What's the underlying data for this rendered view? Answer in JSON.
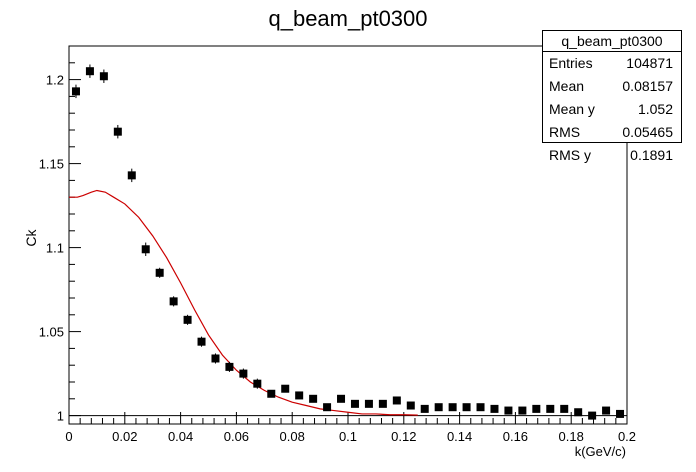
{
  "chart_data": {
    "type": "scatter",
    "title": "q_beam_pt0300",
    "xlabel": "k(GeV/c)",
    "ylabel": "Ck",
    "xlim": [
      0,
      0.2
    ],
    "ylim": [
      0.995,
      1.22
    ],
    "x_ticks": [
      "0",
      "0.02",
      "0.04",
      "0.06",
      "0.08",
      "0.1",
      "0.12",
      "0.14",
      "0.16",
      "0.18",
      "0.2"
    ],
    "y_ticks": [
      "1",
      "1.05",
      "1.1",
      "1.15",
      "1.2"
    ],
    "grid": false,
    "legend": "none",
    "series": [
      {
        "marker": "square",
        "color": "#000000",
        "points": [
          {
            "x": 0.0025,
            "y": 1.193,
            "err": 0.004
          },
          {
            "x": 0.0075,
            "y": 1.205,
            "err": 0.004
          },
          {
            "x": 0.0125,
            "y": 1.202,
            "err": 0.004
          },
          {
            "x": 0.0175,
            "y": 1.169,
            "err": 0.004
          },
          {
            "x": 0.0225,
            "y": 1.143,
            "err": 0.004
          },
          {
            "x": 0.0275,
            "y": 1.099,
            "err": 0.004
          },
          {
            "x": 0.0325,
            "y": 1.085,
            "err": 0.003
          },
          {
            "x": 0.0375,
            "y": 1.068,
            "err": 0.003
          },
          {
            "x": 0.0425,
            "y": 1.057,
            "err": 0.003
          },
          {
            "x": 0.0475,
            "y": 1.044,
            "err": 0.003
          },
          {
            "x": 0.0525,
            "y": 1.034,
            "err": 0.003
          },
          {
            "x": 0.0575,
            "y": 1.029,
            "err": 0.003
          },
          {
            "x": 0.0625,
            "y": 1.025,
            "err": 0.003
          },
          {
            "x": 0.0675,
            "y": 1.019,
            "err": 0.003
          },
          {
            "x": 0.0725,
            "y": 1.013,
            "err": 0.002
          },
          {
            "x": 0.0775,
            "y": 1.016,
            "err": 0.002
          },
          {
            "x": 0.0825,
            "y": 1.012,
            "err": 0.002
          },
          {
            "x": 0.0875,
            "y": 1.01,
            "err": 0.002
          },
          {
            "x": 0.0925,
            "y": 1.005,
            "err": 0.002
          },
          {
            "x": 0.0975,
            "y": 1.01,
            "err": 0.002
          },
          {
            "x": 0.1025,
            "y": 1.007,
            "err": 0.002
          },
          {
            "x": 0.1075,
            "y": 1.007,
            "err": 0.002
          },
          {
            "x": 0.1125,
            "y": 1.007,
            "err": 0.002
          },
          {
            "x": 0.1175,
            "y": 1.009,
            "err": 0.002
          },
          {
            "x": 0.1225,
            "y": 1.006,
            "err": 0.002
          },
          {
            "x": 0.1275,
            "y": 1.004,
            "err": 0.002
          },
          {
            "x": 0.1325,
            "y": 1.005,
            "err": 0.002
          },
          {
            "x": 0.1375,
            "y": 1.005,
            "err": 0.002
          },
          {
            "x": 0.1425,
            "y": 1.005,
            "err": 0.002
          },
          {
            "x": 0.1475,
            "y": 1.005,
            "err": 0.002
          },
          {
            "x": 0.1525,
            "y": 1.004,
            "err": 0.002
          },
          {
            "x": 0.1575,
            "y": 1.003,
            "err": 0.002
          },
          {
            "x": 0.1625,
            "y": 1.003,
            "err": 0.002
          },
          {
            "x": 0.1675,
            "y": 1.004,
            "err": 0.002
          },
          {
            "x": 0.1725,
            "y": 1.004,
            "err": 0.002
          },
          {
            "x": 0.1775,
            "y": 1.004,
            "err": 0.002
          },
          {
            "x": 0.1825,
            "y": 1.002,
            "err": 0.002
          },
          {
            "x": 0.1875,
            "y": 1.0,
            "err": 0.002
          },
          {
            "x": 0.1925,
            "y": 1.003,
            "err": 0.002
          },
          {
            "x": 0.1975,
            "y": 1.001,
            "err": 0.002
          }
        ]
      },
      {
        "line": true,
        "color": "#cc0000",
        "points": [
          {
            "x": 0.0,
            "y": 1.13
          },
          {
            "x": 0.003,
            "y": 1.13
          },
          {
            "x": 0.005,
            "y": 1.131
          },
          {
            "x": 0.008,
            "y": 1.133
          },
          {
            "x": 0.01,
            "y": 1.134
          },
          {
            "x": 0.013,
            "y": 1.133
          },
          {
            "x": 0.016,
            "y": 1.13
          },
          {
            "x": 0.02,
            "y": 1.126
          },
          {
            "x": 0.025,
            "y": 1.118
          },
          {
            "x": 0.03,
            "y": 1.107
          },
          {
            "x": 0.035,
            "y": 1.094
          },
          {
            "x": 0.04,
            "y": 1.079
          },
          {
            "x": 0.045,
            "y": 1.063
          },
          {
            "x": 0.05,
            "y": 1.048
          },
          {
            "x": 0.055,
            "y": 1.036
          },
          {
            "x": 0.06,
            "y": 1.027
          },
          {
            "x": 0.065,
            "y": 1.02
          },
          {
            "x": 0.07,
            "y": 1.015
          },
          {
            "x": 0.075,
            "y": 1.011
          },
          {
            "x": 0.08,
            "y": 1.008
          },
          {
            "x": 0.085,
            "y": 1.006
          },
          {
            "x": 0.09,
            "y": 1.004
          },
          {
            "x": 0.095,
            "y": 1.003
          },
          {
            "x": 0.1,
            "y": 1.002
          },
          {
            "x": 0.105,
            "y": 1.001
          },
          {
            "x": 0.11,
            "y": 1.001
          },
          {
            "x": 0.115,
            "y": 1.0005
          },
          {
            "x": 0.12,
            "y": 1.0005
          },
          {
            "x": 0.125,
            "y": 1.0003
          }
        ]
      }
    ],
    "reference_line": {
      "y": 1.0,
      "color": "#000000"
    }
  },
  "stats": {
    "title": "q_beam_pt0300",
    "rows": [
      {
        "label": "Entries",
        "value": "104871"
      },
      {
        "label": "Mean",
        "value": "0.08157"
      },
      {
        "label": "Mean y",
        "value": "1.052"
      },
      {
        "label": "RMS",
        "value": "0.05465"
      },
      {
        "label": "RMS y",
        "value": "0.1891"
      }
    ]
  }
}
